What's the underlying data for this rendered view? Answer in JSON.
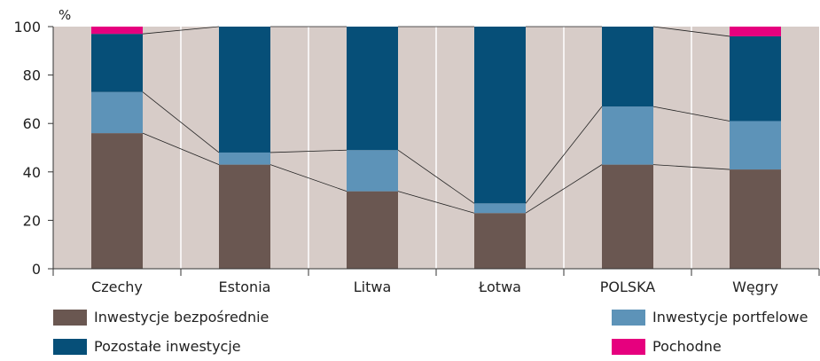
{
  "chart_data": {
    "type": "bar",
    "stacked": true,
    "ylabel": "%",
    "ylim": [
      0,
      100
    ],
    "yticks": [
      0,
      20,
      40,
      60,
      80,
      100
    ],
    "categories": [
      "Czechy",
      "Estonia",
      "Litwa",
      "Łotwa",
      "POLSKA",
      "Węgry"
    ],
    "series": [
      {
        "name": "Inwestycje bezpośrednie",
        "color": "#6a5751",
        "values": [
          56,
          43,
          32,
          23,
          43,
          41
        ]
      },
      {
        "name": "Inwestycje portfelowe",
        "color": "#5d93b8",
        "values": [
          17,
          5,
          17,
          4,
          24,
          20
        ]
      },
      {
        "name": "Pozostałe inwestycje",
        "color": "#064f78",
        "values": [
          24,
          52,
          51,
          73,
          33,
          35
        ]
      },
      {
        "name": "Pochodne",
        "color": "#e6007e",
        "values": [
          3,
          0,
          0,
          0,
          0,
          4
        ]
      }
    ],
    "grid": false,
    "plot_background": "#d7ccc8",
    "connector_lines": true,
    "legend_position": "bottom"
  }
}
